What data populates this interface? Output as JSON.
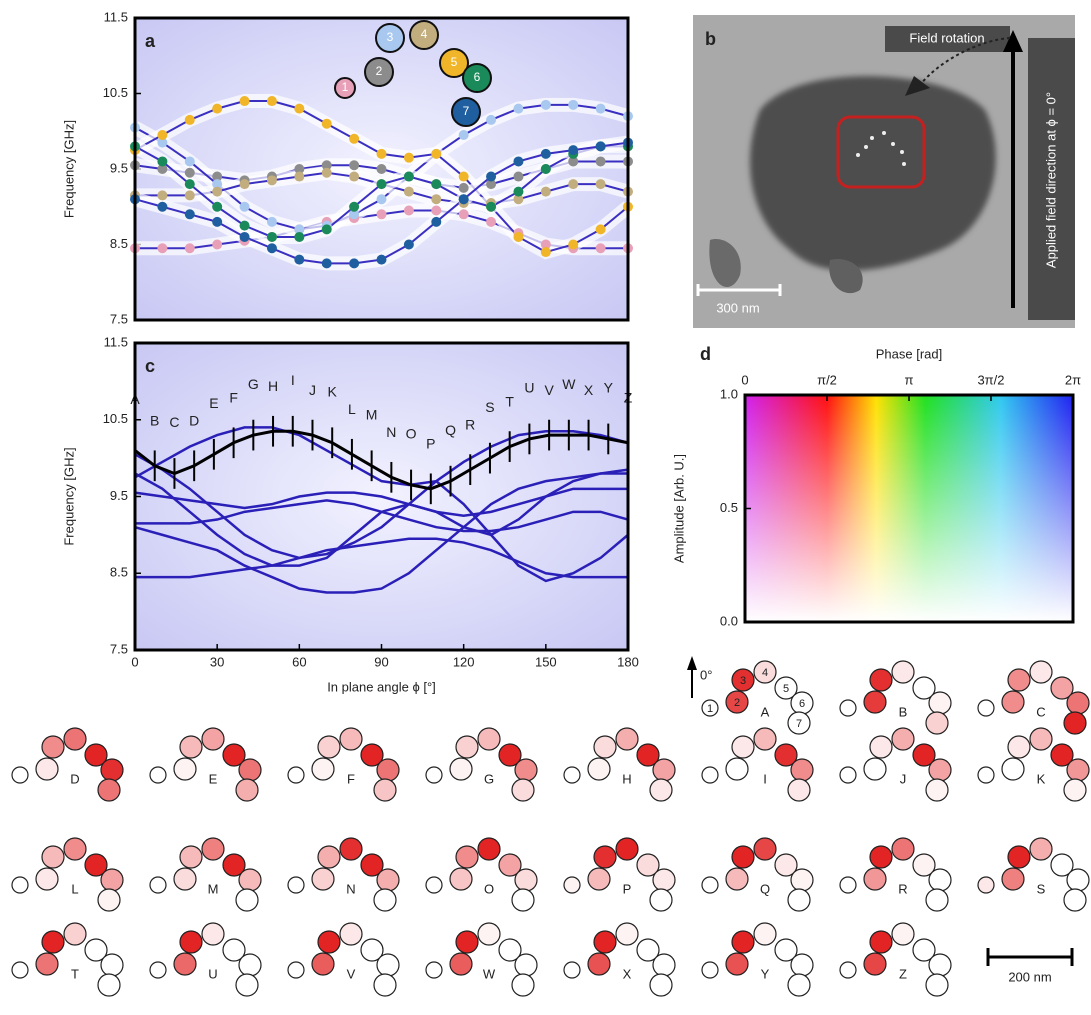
{
  "chart_data": [
    {
      "type": "line",
      "panel": "a",
      "ylabel": "Frequency [GHz]",
      "markers": true,
      "xlim": [
        0,
        180
      ],
      "ylim": [
        7.5,
        11.5
      ],
      "yticks": [
        7.5,
        8.5,
        9.5,
        10.5,
        11.5
      ],
      "x": [
        0,
        10,
        20,
        30,
        40,
        50,
        60,
        70,
        80,
        90,
        100,
        110,
        120,
        130,
        140,
        150,
        160,
        170,
        180
      ],
      "series": [
        {
          "name": "1",
          "color": "#e8a0b8",
          "values": [
            8.45,
            8.45,
            8.45,
            8.5,
            8.55,
            8.6,
            8.7,
            8.8,
            8.85,
            8.9,
            8.95,
            8.95,
            8.9,
            8.8,
            8.65,
            8.5,
            8.45,
            8.45,
            8.45
          ]
        },
        {
          "name": "2",
          "color": "#8c8c8c",
          "values": [
            9.55,
            9.5,
            9.45,
            9.4,
            9.35,
            9.4,
            9.5,
            9.55,
            9.55,
            9.5,
            9.4,
            9.3,
            9.25,
            9.3,
            9.4,
            9.5,
            9.6,
            9.6,
            9.6
          ]
        },
        {
          "name": "3",
          "color": "#a9c8f0",
          "values": [
            10.05,
            9.85,
            9.6,
            9.3,
            9.0,
            8.8,
            8.7,
            8.75,
            8.9,
            9.1,
            9.4,
            9.7,
            9.95,
            10.15,
            10.3,
            10.35,
            10.35,
            10.3,
            10.2
          ]
        },
        {
          "name": "4",
          "color": "#c2ad7e",
          "values": [
            9.15,
            9.15,
            9.15,
            9.2,
            9.3,
            9.35,
            9.4,
            9.45,
            9.4,
            9.3,
            9.2,
            9.1,
            9.05,
            9.05,
            9.1,
            9.2,
            9.3,
            9.3,
            9.2
          ]
        },
        {
          "name": "5",
          "color": "#f0b528",
          "values": [
            9.75,
            9.95,
            10.15,
            10.3,
            10.4,
            10.4,
            10.3,
            10.1,
            9.9,
            9.7,
            9.65,
            9.7,
            9.4,
            9.0,
            8.6,
            8.4,
            8.5,
            8.7,
            9.0
          ]
        },
        {
          "name": "6",
          "color": "#1a8a5a",
          "values": [
            9.8,
            9.6,
            9.3,
            9.0,
            8.75,
            8.6,
            8.6,
            8.7,
            9.0,
            9.3,
            9.4,
            9.3,
            9.1,
            9.0,
            9.2,
            9.5,
            9.7,
            9.8,
            9.8
          ]
        },
        {
          "name": "7",
          "color": "#1f5f9f",
          "values": [
            9.1,
            9.0,
            8.9,
            8.8,
            8.6,
            8.45,
            8.3,
            8.25,
            8.25,
            8.3,
            8.5,
            8.8,
            9.1,
            9.4,
            9.6,
            9.7,
            9.75,
            9.8,
            9.85
          ]
        }
      ]
    },
    {
      "type": "errorline",
      "panel": "c",
      "ylabel": "Frequency [GHz]",
      "xlabel": "In plane angle ϕ [°]",
      "xlim": [
        0,
        180
      ],
      "ylim": [
        7.5,
        11.5
      ],
      "xticks": [
        0,
        30,
        60,
        90,
        120,
        150,
        180
      ],
      "yticks": [
        7.5,
        8.5,
        9.5,
        10.5,
        11.5
      ],
      "x": [
        0,
        7.2,
        14.4,
        21.6,
        28.8,
        36,
        43.2,
        50.4,
        57.6,
        64.8,
        72,
        79.2,
        86.4,
        93.6,
        100.8,
        108,
        115.2,
        122.4,
        129.6,
        136.8,
        144,
        151.2,
        158.4,
        165.6,
        172.8,
        180
      ],
      "point_labels": [
        "A",
        "B",
        "C",
        "D",
        "E",
        "F",
        "G",
        "H",
        "I",
        "J",
        "K",
        "L",
        "M",
        "N",
        "O",
        "P",
        "Q",
        "R",
        "S",
        "T",
        "U",
        "V",
        "W",
        "X",
        "Y",
        "Z"
      ],
      "color": "#000000",
      "values": [
        10.1,
        9.9,
        9.8,
        9.9,
        10.05,
        10.2,
        10.3,
        10.35,
        10.35,
        10.3,
        10.2,
        10.05,
        9.9,
        9.75,
        9.65,
        9.6,
        9.7,
        9.85,
        10.0,
        10.15,
        10.25,
        10.3,
        10.3,
        10.3,
        10.25,
        10.2
      ],
      "errors": [
        0.2,
        0.2,
        0.2,
        0.2,
        0.2,
        0.2,
        0.2,
        0.2,
        0.2,
        0.2,
        0.2,
        0.2,
        0.2,
        0.2,
        0.2,
        0.2,
        0.2,
        0.2,
        0.2,
        0.2,
        0.2,
        0.2,
        0.2,
        0.2,
        0.2,
        0.2
      ]
    },
    {
      "type": "colormap",
      "panel": "d",
      "title": "Phase [rad]",
      "ylabel": "Amplitude [Arb. U.]",
      "xlim": [
        0,
        6.283
      ],
      "xticks": [
        0,
        {
          "value": 1.571,
          "label": "π/2"
        },
        {
          "value": 3.142,
          "label": "π"
        },
        {
          "value": 4.712,
          "label": "3π/2"
        },
        {
          "value": 6.283,
          "label": "2π"
        }
      ],
      "ylim": [
        0,
        1
      ],
      "yticks": [
        {
          "value": 0,
          "label": "0.0"
        },
        {
          "value": 0.5,
          "label": "0.5"
        },
        {
          "value": 1,
          "label": "1.0"
        }
      ]
    }
  ],
  "panel_b": {
    "panel": "b",
    "arrow_label": "Field rotation",
    "field_label": "Applied field direction at ϕ = 0°",
    "scale_bar": "300 nm"
  },
  "mode_maps": {
    "direction": "0°",
    "element_labels": [
      "1",
      "2",
      "3",
      "4",
      "5",
      "6",
      "7"
    ],
    "scale_bar": "200 nm",
    "modes": [
      {
        "label": "A",
        "amplitudes": [
          0,
          0.8,
          0.9,
          0.15,
          0,
          0,
          0
        ]
      },
      {
        "label": "B",
        "amplitudes": [
          0,
          0.85,
          0.9,
          0.1,
          0,
          0.05,
          0.2
        ]
      },
      {
        "label": "C",
        "amplitudes": [
          0,
          0.5,
          0.5,
          0.1,
          0.4,
          0.6,
          0.95
        ]
      },
      {
        "label": "D",
        "amplitudes": [
          0,
          0.1,
          0.5,
          0.6,
          0.95,
          0.9,
          0.6
        ]
      },
      {
        "label": "E",
        "amplitudes": [
          0,
          0.05,
          0.3,
          0.4,
          0.95,
          0.6,
          0.35
        ]
      },
      {
        "label": "F",
        "amplitudes": [
          0,
          0.05,
          0.2,
          0.3,
          0.95,
          0.6,
          0.25
        ]
      },
      {
        "label": "G",
        "amplitudes": [
          0,
          0.05,
          0.2,
          0.3,
          0.95,
          0.5,
          0.15
        ]
      },
      {
        "label": "H",
        "amplitudes": [
          0,
          0.05,
          0.15,
          0.35,
          0.95,
          0.4,
          0.1
        ]
      },
      {
        "label": "I",
        "amplitudes": [
          0,
          0,
          0.1,
          0.3,
          0.9,
          0.5,
          0.1
        ]
      },
      {
        "label": "J",
        "amplitudes": [
          0,
          0,
          0.1,
          0.35,
          0.95,
          0.4,
          0.05
        ]
      },
      {
        "label": "K",
        "amplitudes": [
          0,
          0,
          0.1,
          0.3,
          0.95,
          0.45,
          0.05
        ]
      },
      {
        "label": "L",
        "amplitudes": [
          0,
          0.1,
          0.3,
          0.5,
          0.95,
          0.4,
          0.05
        ]
      },
      {
        "label": "M",
        "amplitudes": [
          0,
          0.15,
          0.3,
          0.55,
          0.95,
          0.3,
          0
        ]
      },
      {
        "label": "N",
        "amplitudes": [
          0,
          0.2,
          0.35,
          0.9,
          0.95,
          0.35,
          0
        ]
      },
      {
        "label": "O",
        "amplitudes": [
          0,
          0.25,
          0.5,
          0.95,
          0.4,
          0.15,
          0
        ]
      },
      {
        "label": "P",
        "amplitudes": [
          0.05,
          0.3,
          0.9,
          0.95,
          0.15,
          0.1,
          0
        ]
      },
      {
        "label": "Q",
        "amplitudes": [
          0,
          0.3,
          0.95,
          0.8,
          0.1,
          0.05,
          0
        ]
      },
      {
        "label": "R",
        "amplitudes": [
          0,
          0.45,
          0.95,
          0.6,
          0.05,
          0,
          0
        ]
      },
      {
        "label": "S",
        "amplitudes": [
          0.1,
          0.55,
          0.95,
          0.35,
          0,
          0,
          0
        ]
      },
      {
        "label": "T",
        "amplitudes": [
          0,
          0.6,
          0.95,
          0.2,
          0,
          0,
          0
        ]
      },
      {
        "label": "U",
        "amplitudes": [
          0,
          0.65,
          0.95,
          0.1,
          0,
          0,
          0
        ]
      },
      {
        "label": "V",
        "amplitudes": [
          0,
          0.7,
          0.95,
          0.1,
          0,
          0,
          0
        ]
      },
      {
        "label": "W",
        "amplitudes": [
          0,
          0.7,
          0.95,
          0.05,
          0,
          0,
          0
        ]
      },
      {
        "label": "X",
        "amplitudes": [
          0,
          0.75,
          0.95,
          0.05,
          0,
          0,
          0
        ]
      },
      {
        "label": "Y",
        "amplitudes": [
          0,
          0.75,
          0.95,
          0.05,
          0,
          0,
          0
        ]
      },
      {
        "label": "Z",
        "amplitudes": [
          0,
          0.8,
          0.95,
          0.05,
          0,
          0,
          0
        ]
      }
    ]
  }
}
